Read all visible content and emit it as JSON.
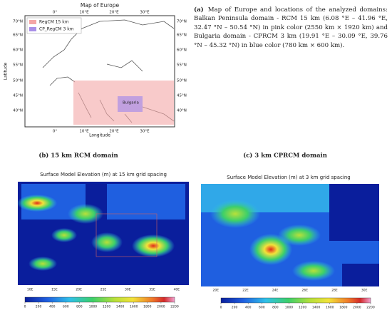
{
  "map_a": {
    "title": "Map of Europe",
    "lat_labels": [
      "70°N",
      "65°N",
      "60°N",
      "55°N",
      "50°N",
      "45°N",
      "40°N"
    ],
    "lon_labels": [
      "0°",
      "10°E",
      "20°E",
      "30°E"
    ],
    "y_label": "Latitude",
    "x_label": "Longitude",
    "legend": [
      "RegCM 15 km",
      "CP_RegCM 3 km"
    ],
    "domain_label": "Bulgaria"
  },
  "caption_a": {
    "label": "(a)",
    "text": "Map of Europe and locations of the analyzed domains: Balkan Peninsula domain - RCM 15 km (6.08 °E – 41.96 °E, 32.47 °N – 50.54 °N) in pink color (2550 km × 1920 km) and Bulgaria domain - CPRCM 3 km (19.91 °E – 30.09 °E, 39.76 °N – 45.32 °N) in blue color (780 km × 600 km)."
  },
  "panel_b": {
    "label": "(b) 15 km RCM domain",
    "title": "Surface Model Elevation (m) at 15 km grid spacing",
    "lon_labels": [
      "10E",
      "15E",
      "20E",
      "25E",
      "30E",
      "35E",
      "40E"
    ],
    "colorbar_ticks": [
      0,
      200,
      400,
      600,
      800,
      1000,
      1200,
      1400,
      1600,
      1800,
      2000,
      2200
    ]
  },
  "panel_c": {
    "label": "(c) 3 km CPRCM domain",
    "title": "Surface Model Elevation (m) at 3 km grid spacing",
    "lon_labels": [
      "20E",
      "22E",
      "24E",
      "26E",
      "28E",
      "30E"
    ],
    "colorbar_ticks": [
      0,
      200,
      400,
      600,
      800,
      1000,
      1200,
      1400,
      1600,
      1800,
      2000,
      2200
    ]
  }
}
